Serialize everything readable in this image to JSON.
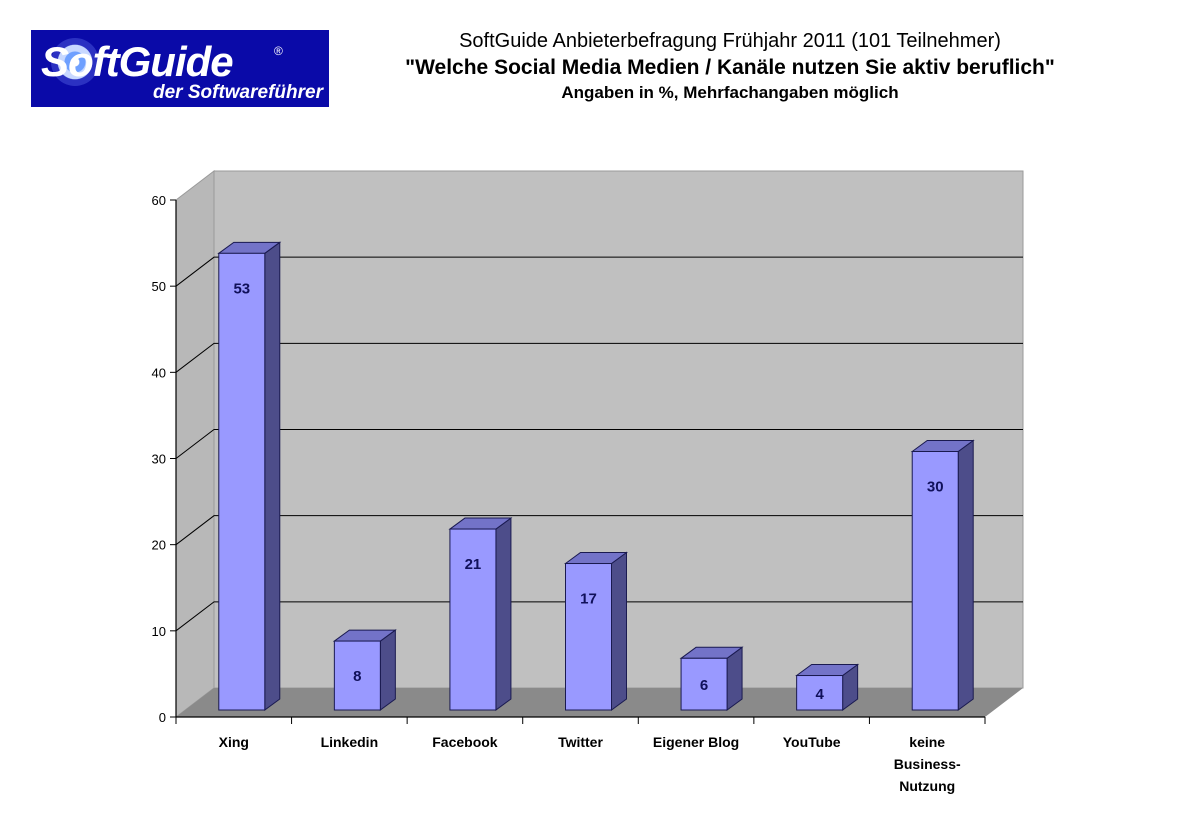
{
  "logo": {
    "brand": "SoftGuide",
    "registered": "®",
    "tagline": "der Softwareführer",
    "colors": {
      "background": "#0a0aa8",
      "text": "#ffffff"
    }
  },
  "header": {
    "title_line1": "SoftGuide Anbieterbefragung Frühjahr 2011 (101 Teilnehmer)",
    "title_line2": "\"Welche Social Media Medien / Kanäle nutzen Sie aktiv beruflich\"",
    "title_line3": "Angaben in %, Mehrfachangaben möglich"
  },
  "chart_data": {
    "type": "bar",
    "style": "3d-column",
    "title": "SoftGuide Anbieterbefragung Frühjahr 2011 (101 Teilnehmer)",
    "subtitle": "\"Welche Social Media Medien / Kanäle nutzen Sie aktiv beruflich\" — Angaben in %, Mehrfachangaben möglich",
    "categories": [
      "Xing",
      "Linkedin",
      "Facebook",
      "Twitter",
      "Eigener Blog",
      "YouTube",
      "keine Business-Nutzung"
    ],
    "category_label_lines": [
      [
        "Xing"
      ],
      [
        "Linkedin"
      ],
      [
        "Facebook"
      ],
      [
        "Twitter"
      ],
      [
        "Eigener Blog"
      ],
      [
        "YouTube"
      ],
      [
        "keine",
        "Business-",
        "Nutzung"
      ]
    ],
    "values": [
      53,
      8,
      21,
      17,
      6,
      4,
      30
    ],
    "data_labels": [
      "53",
      "8",
      "21",
      "17",
      "6",
      "4",
      "30"
    ],
    "xlabel": "",
    "ylabel": "",
    "unit": "%",
    "ylim": [
      0,
      60
    ],
    "yticks": [
      0,
      10,
      20,
      30,
      40,
      50,
      60
    ],
    "grid": true,
    "legend": null,
    "colors": {
      "bar_front": "#9999ff",
      "bar_top": "#7373c8",
      "bar_side": "#4d4d8a",
      "wall": "#c0c0c0",
      "side_wall": "#b8b8b8",
      "floor": "#8a8a8a",
      "gridline": "#000000",
      "data_label": "#10105a"
    }
  }
}
